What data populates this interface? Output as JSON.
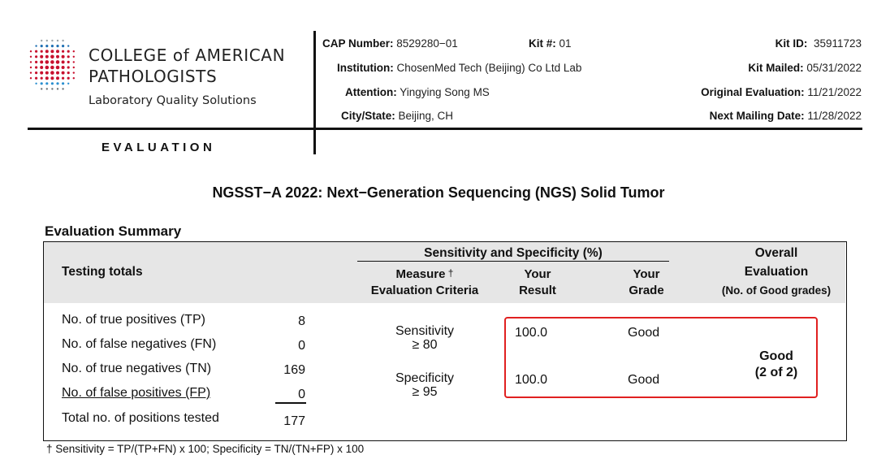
{
  "brand": {
    "line1": "COLLEGE of AMERICAN",
    "line2": "PATHOLOGISTS",
    "line3": "Laboratory Quality Solutions"
  },
  "section_label": "EVALUATION",
  "header": {
    "cap_number_label": "CAP Number:",
    "cap_number_value": "8529280−01",
    "kit_no_label": "Kit #:",
    "kit_no_value": "01",
    "institution_label": "Institution:",
    "institution_value": "ChosenMed Tech (Beijing) Co Ltd Lab",
    "attention_label": "Attention:",
    "attention_value": "Yingying Song MS",
    "city_label": "City/State:",
    "city_value": "Beijing, CH",
    "kit_id_label": "Kit ID:",
    "kit_id_value": "35911723",
    "kit_mailed_label": "Kit Mailed:",
    "kit_mailed_value": "05/31/2022",
    "orig_eval_label": "Original Evaluation:",
    "orig_eval_value": "11/21/2022",
    "next_mailing_label": "Next Mailing Date:",
    "next_mailing_value": "11/28/2022"
  },
  "title": "NGSST−A 2022: Next−Generation Sequencing (NGS) Solid Tumor",
  "summary": {
    "heading": "Evaluation Summary",
    "col_testing_totals": "Testing totals",
    "col_sens_spec": "Sensitivity and Specificity (%)",
    "col_measure_1": "Measure",
    "col_measure_dagger": "†",
    "col_measure_2": "Evaluation Criteria",
    "col_your_result_1": "Your",
    "col_your_result_2": "Result",
    "col_your_grade_1": "Your",
    "col_your_grade_2": "Grade",
    "col_overall_1": "Overall",
    "col_overall_2": "Evaluation",
    "col_overall_3": "(No. of Good grades)",
    "totals": [
      {
        "label": "No. of true positives (TP)",
        "value": "8"
      },
      {
        "label": "No. of false negatives (FN)",
        "value": "0"
      },
      {
        "label": "No. of true negatives (TN)",
        "value": "169"
      },
      {
        "label": "No. of false positives (FP)",
        "value": "0"
      },
      {
        "label": "Total no. of positions tested",
        "value": "177"
      }
    ],
    "measures": [
      {
        "name": "Sensitivity",
        "criteria": "≥ 80",
        "result": "100.0",
        "grade": "Good"
      },
      {
        "name": "Specificity",
        "criteria": "≥ 95",
        "result": "100.0",
        "grade": "Good"
      }
    ],
    "overall_grade": "Good",
    "overall_count": "(2 of 2)",
    "highlight_color": "#e02020"
  },
  "footnote": "† Sensitivity = TP/(TP+FN) x 100; Specificity = TN/(TN+FP) x 100"
}
